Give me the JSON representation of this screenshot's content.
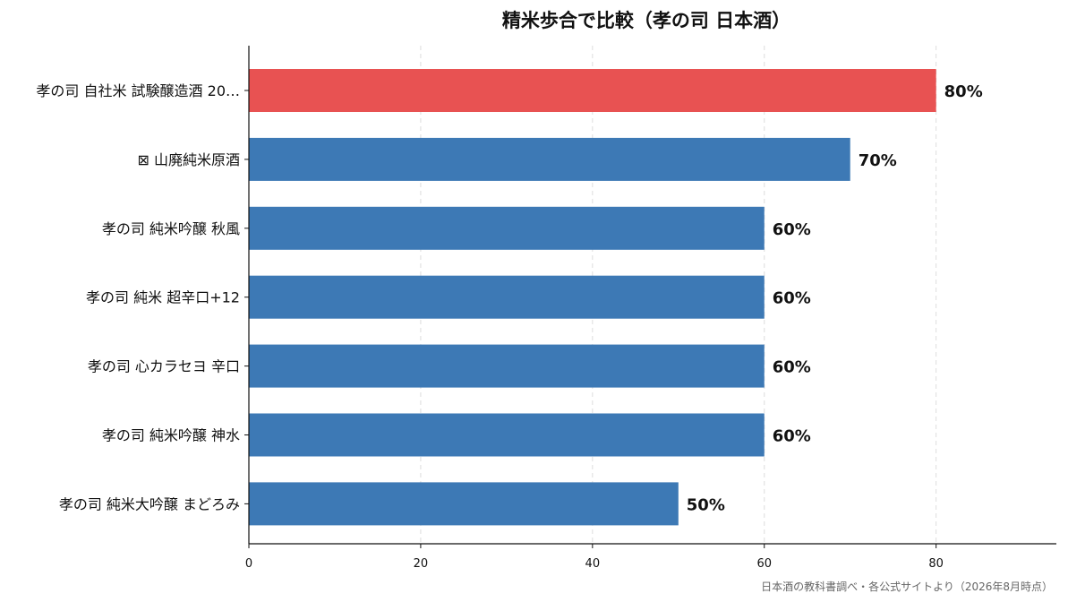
{
  "chart_data": {
    "type": "bar",
    "orientation": "horizontal",
    "title": "精米歩合で比較（孝の司 日本酒）",
    "xlabel": "",
    "ylabel": "",
    "xlim": [
      0,
      94
    ],
    "xticks": [
      0,
      20,
      40,
      60,
      80
    ],
    "grid": "x-dashed",
    "categories": [
      "孝の司 自社米 試験醸造酒 20…",
      "⊠ 山廃純米原酒",
      "孝の司 純米吟醸 秋風",
      "孝の司 純米 超辛口+12",
      "孝の司 心カラセヨ 辛口",
      "孝の司 純米吟醸 神水",
      "孝の司 純米大吟醸 まどろみ"
    ],
    "values": [
      80,
      70,
      60,
      60,
      60,
      60,
      50
    ],
    "value_labels": [
      "80%",
      "70%",
      "60%",
      "60%",
      "60%",
      "60%",
      "50%"
    ],
    "highlight_index": 0,
    "colors": {
      "bar": "#3d79b5",
      "highlight": "#e85252",
      "grid": "#dddddd",
      "axis": "#111111"
    },
    "source": "日本酒の教科書調べ・各公式サイトより（2026年8月時点）"
  }
}
